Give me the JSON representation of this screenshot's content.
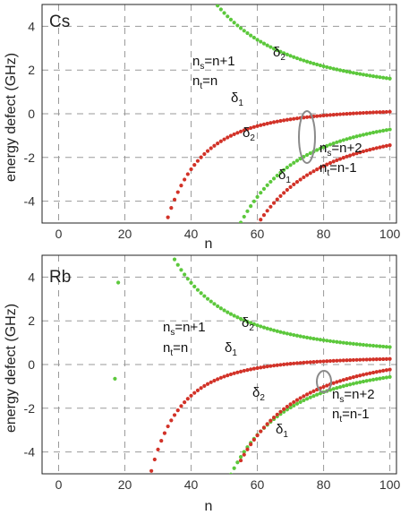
{
  "chart_data": [
    {
      "type": "scatter",
      "panel_label": "Cs",
      "xlabel": "n",
      "ylabel": "energy defect (GHz)",
      "xlim": [
        -5,
        102
      ],
      "ylim": [
        -5,
        5
      ],
      "xticks": [
        0,
        20,
        40,
        60,
        80,
        100
      ],
      "yticks": [
        -4,
        -2,
        0,
        2,
        4
      ],
      "grid": true,
      "colors": {
        "green": "#5cc83c",
        "red": "#d23228"
      },
      "series": [
        {
          "color": "green",
          "model": "pos",
          "a": 10000.0,
          "p": 2.0,
          "c": 0.61,
          "n_from": 48,
          "n_to": 100
        },
        {
          "color": "red",
          "model": "neg",
          "a": 180000.0,
          "p": 3.0,
          "c": 0.27,
          "n_from": 27,
          "n_to": 100
        },
        {
          "color": "green",
          "model": "neg",
          "a": 850000.0,
          "p": 3.0,
          "c": 0.13,
          "n_from": 49,
          "n_to": 100
        },
        {
          "color": "red",
          "model": "neg",
          "a": 1000000.0,
          "p": 3.0,
          "c": -0.44,
          "n_from": 56,
          "n_to": 100
        }
      ],
      "annotations": [
        {
          "lines": [
            [
              "n",
              "s",
              "=n+1"
            ],
            [
              "n",
              "t",
              "=n"
            ]
          ]
        },
        {
          "lines": [
            [
              "n",
              "s",
              "=n+2"
            ],
            [
              "n",
              "t",
              "=n-1"
            ]
          ]
        },
        {
          "label": [
            "δ",
            "2"
          ]
        },
        {
          "label": [
            "δ",
            "1"
          ]
        },
        {
          "label": [
            "δ",
            "2"
          ]
        },
        {
          "label": [
            "δ",
            "1"
          ]
        }
      ]
    },
    {
      "type": "scatter",
      "panel_label": "Rb",
      "xlabel": "n",
      "ylabel": "energy defect (GHz)",
      "xlim": [
        -5,
        102
      ],
      "ylim": [
        -5,
        5
      ],
      "xticks": [
        0,
        20,
        40,
        60,
        80,
        100
      ],
      "yticks": [
        -4,
        -2,
        0,
        2,
        4
      ],
      "grid": true,
      "colors": {
        "green": "#5cc83c",
        "red": "#d23228"
      },
      "series": [
        {
          "color": "green",
          "model": "pos",
          "a": 5600.0,
          "p": 2.0,
          "c": 0.24,
          "n_from": 35,
          "n_to": 100
        },
        {
          "color": "red",
          "model": "neg",
          "a": 115000.0,
          "p": 3.0,
          "c": 0.37,
          "n_from": 26,
          "n_to": 100
        },
        {
          "color": "green",
          "model": "neg",
          "a": 730000.0,
          "p": 3.0,
          "c": 0.16,
          "n_from": 52,
          "n_to": 100
        },
        {
          "color": "red",
          "model": "neg",
          "a": 830000.0,
          "p": 3.0,
          "c": 0.6,
          "n_from": 55,
          "n_to": 100
        }
      ],
      "extra_points": [
        {
          "color": "green",
          "x": 18,
          "y": 3.75
        },
        {
          "color": "green",
          "x": 17,
          "y": -0.65
        }
      ],
      "annotations": [
        {
          "lines": [
            [
              "n",
              "s",
              "=n+1"
            ],
            [
              "n",
              "t",
              "=n"
            ]
          ]
        },
        {
          "lines": [
            [
              "n",
              "s",
              "=n+2"
            ],
            [
              "n",
              "t",
              "=n-1"
            ]
          ]
        },
        {
          "label": [
            "δ",
            "2"
          ]
        },
        {
          "label": [
            "δ",
            "1"
          ]
        },
        {
          "label": [
            "δ",
            "2"
          ]
        },
        {
          "label": [
            "δ",
            "1"
          ]
        }
      ]
    }
  ]
}
